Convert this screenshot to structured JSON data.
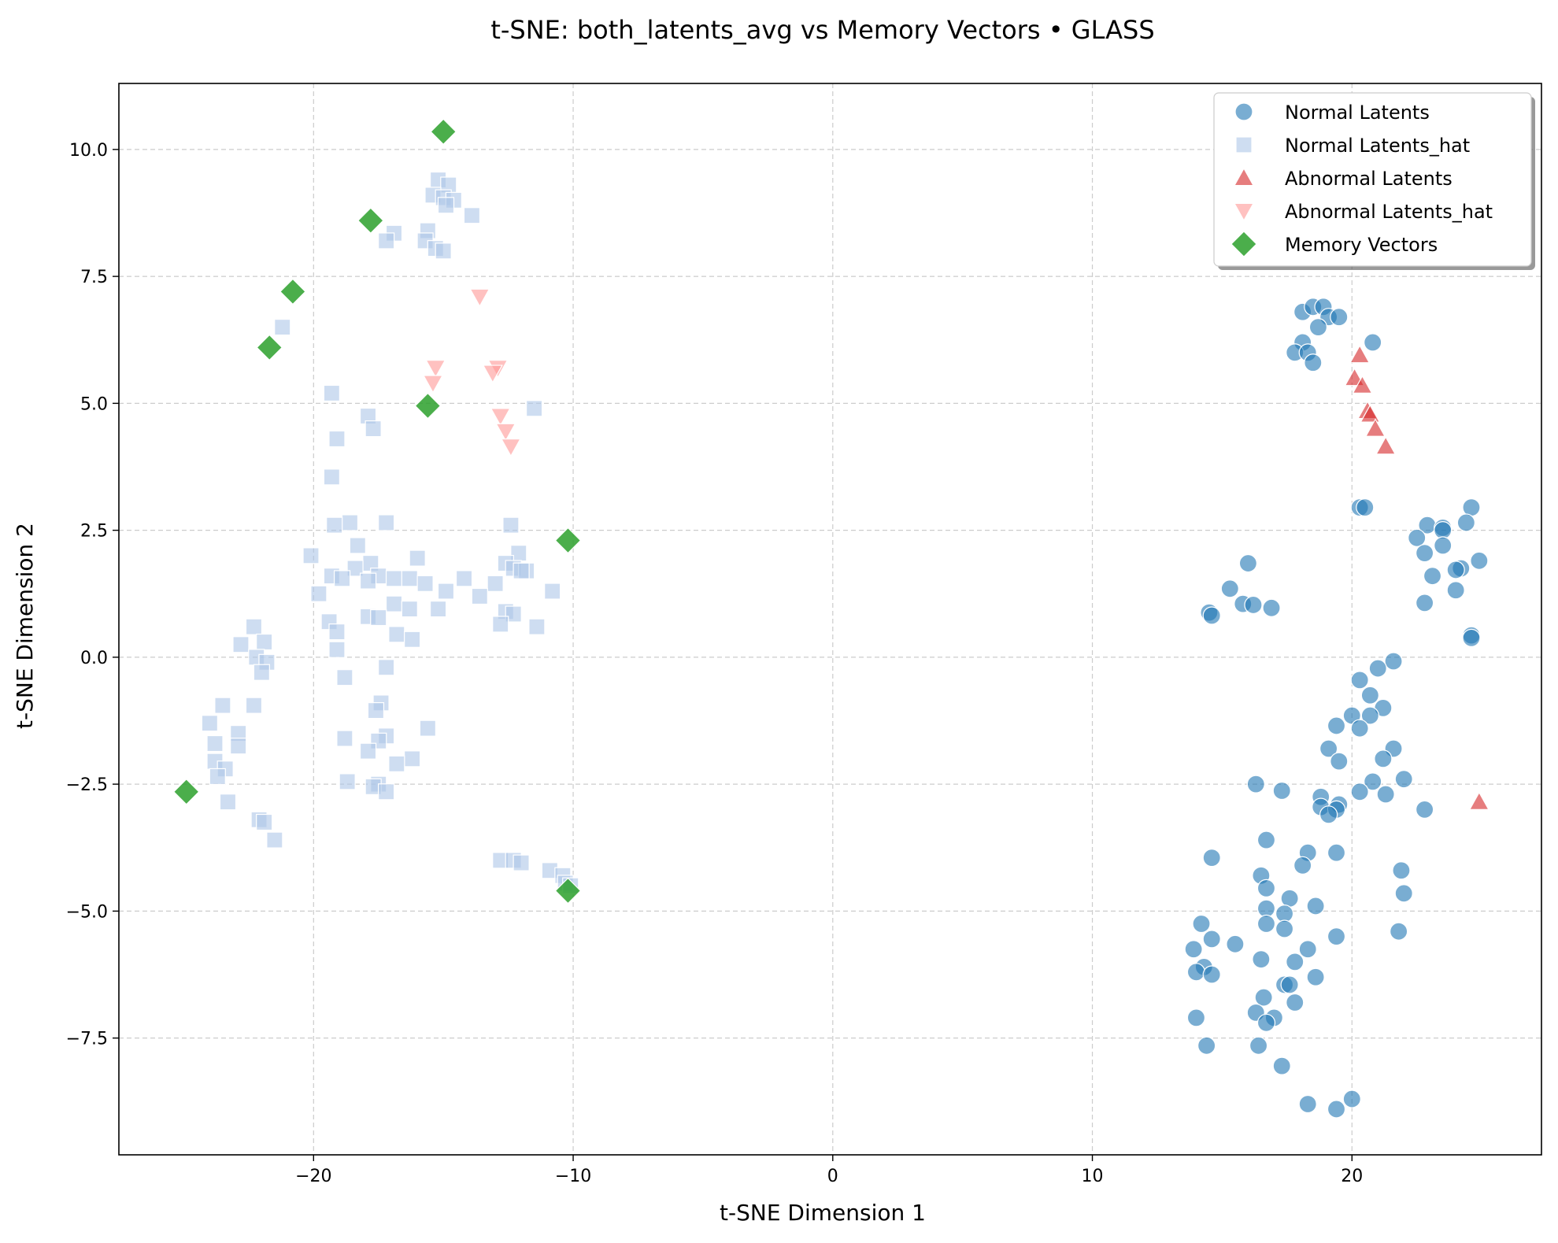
{
  "chart_data": {
    "type": "scatter",
    "title": "t-SNE: both_latents_avg vs Memory Vectors • GLASS",
    "xlabel": "t-SNE Dimension 1",
    "ylabel": "t-SNE Dimension 2",
    "xlim": [
      -27.5,
      27.3
    ],
    "ylim": [
      -9.8,
      11.3
    ],
    "xticks": [
      -20,
      -10,
      0,
      10,
      20
    ],
    "yticks": [
      -7.5,
      -5.0,
      -2.5,
      0.0,
      2.5,
      5.0,
      7.5,
      10.0
    ],
    "xtick_labels": [
      "−20",
      "−10",
      "0",
      "10",
      "20"
    ],
    "ytick_labels": [
      "−7.5",
      "−5.0",
      "−2.5",
      "0.0",
      "2.5",
      "5.0",
      "7.5",
      "10.0"
    ],
    "grid": true,
    "legend_position": "top-right",
    "series": [
      {
        "name": "Normal Latents",
        "marker": "circle",
        "color": "#1f77b4",
        "points": [
          [
            18.1,
            6.8
          ],
          [
            18.5,
            6.9
          ],
          [
            18.9,
            6.9
          ],
          [
            19.1,
            6.7
          ],
          [
            19.5,
            6.7
          ],
          [
            18.7,
            6.5
          ],
          [
            20.8,
            6.2
          ],
          [
            18.1,
            6.2
          ],
          [
            17.8,
            6.0
          ],
          [
            18.3,
            6.0
          ],
          [
            18.5,
            5.8
          ],
          [
            20.3,
            2.95
          ],
          [
            20.5,
            2.95
          ],
          [
            16.0,
            1.85
          ],
          [
            15.3,
            1.35
          ],
          [
            15.8,
            1.05
          ],
          [
            16.2,
            1.03
          ],
          [
            16.9,
            0.97
          ],
          [
            14.5,
            0.88
          ],
          [
            14.6,
            0.82
          ],
          [
            24.6,
            2.95
          ],
          [
            24.4,
            2.65
          ],
          [
            22.9,
            2.6
          ],
          [
            23.5,
            2.55
          ],
          [
            23.5,
            2.5
          ],
          [
            22.5,
            2.35
          ],
          [
            23.5,
            2.2
          ],
          [
            22.8,
            2.05
          ],
          [
            24.9,
            1.9
          ],
          [
            24.2,
            1.75
          ],
          [
            24.0,
            1.72
          ],
          [
            23.1,
            1.6
          ],
          [
            24.0,
            1.32
          ],
          [
            22.8,
            1.07
          ],
          [
            24.6,
            0.43
          ],
          [
            24.6,
            0.38
          ],
          [
            21.6,
            -0.08
          ],
          [
            21.0,
            -0.22
          ],
          [
            20.3,
            -0.45
          ],
          [
            20.7,
            -0.75
          ],
          [
            21.2,
            -1.0
          ],
          [
            20.0,
            -1.15
          ],
          [
            20.7,
            -1.15
          ],
          [
            20.3,
            -1.4
          ],
          [
            19.4,
            -1.35
          ],
          [
            21.6,
            -1.8
          ],
          [
            19.1,
            -1.8
          ],
          [
            21.2,
            -2.0
          ],
          [
            19.5,
            -2.05
          ],
          [
            22.0,
            -2.4
          ],
          [
            20.8,
            -2.45
          ],
          [
            16.3,
            -2.5
          ],
          [
            20.3,
            -2.65
          ],
          [
            21.3,
            -2.7
          ],
          [
            17.3,
            -2.63
          ],
          [
            18.8,
            -2.75
          ],
          [
            19.5,
            -2.9
          ],
          [
            18.8,
            -2.95
          ],
          [
            19.4,
            -3.0
          ],
          [
            22.8,
            -3.0
          ],
          [
            19.1,
            -3.1
          ],
          [
            16.7,
            -3.6
          ],
          [
            19.4,
            -3.85
          ],
          [
            18.3,
            -3.85
          ],
          [
            14.6,
            -3.95
          ],
          [
            18.1,
            -4.1
          ],
          [
            21.9,
            -4.2
          ],
          [
            16.5,
            -4.3
          ],
          [
            16.7,
            -4.55
          ],
          [
            22.0,
            -4.65
          ],
          [
            17.6,
            -4.75
          ],
          [
            18.6,
            -4.9
          ],
          [
            16.7,
            -4.95
          ],
          [
            17.4,
            -5.05
          ],
          [
            16.7,
            -5.25
          ],
          [
            14.2,
            -5.25
          ],
          [
            17.4,
            -5.35
          ],
          [
            21.8,
            -5.4
          ],
          [
            19.4,
            -5.5
          ],
          [
            14.6,
            -5.55
          ],
          [
            15.5,
            -5.65
          ],
          [
            13.9,
            -5.75
          ],
          [
            18.3,
            -5.75
          ],
          [
            16.5,
            -5.95
          ],
          [
            17.8,
            -6.0
          ],
          [
            14.3,
            -6.1
          ],
          [
            14.0,
            -6.2
          ],
          [
            14.6,
            -6.25
          ],
          [
            18.6,
            -6.3
          ],
          [
            17.4,
            -6.45
          ],
          [
            17.6,
            -6.45
          ],
          [
            16.6,
            -6.7
          ],
          [
            17.8,
            -6.8
          ],
          [
            16.3,
            -7.0
          ],
          [
            17.0,
            -7.1
          ],
          [
            16.7,
            -7.2
          ],
          [
            14.0,
            -7.1
          ],
          [
            14.4,
            -7.65
          ],
          [
            16.4,
            -7.65
          ],
          [
            17.3,
            -8.05
          ],
          [
            20.0,
            -8.7
          ],
          [
            18.3,
            -8.8
          ],
          [
            19.4,
            -8.9
          ]
        ]
      },
      {
        "name": "Normal Latents_hat",
        "marker": "square",
        "color": "#aec7e8",
        "points": [
          [
            -15.2,
            9.4
          ],
          [
            -14.8,
            9.3
          ],
          [
            -15.4,
            9.1
          ],
          [
            -15.0,
            9.05
          ],
          [
            -14.6,
            9.0
          ],
          [
            -14.9,
            8.9
          ],
          [
            -13.9,
            8.7
          ],
          [
            -15.6,
            8.4
          ],
          [
            -16.9,
            8.35
          ],
          [
            -17.2,
            8.2
          ],
          [
            -15.7,
            8.2
          ],
          [
            -15.3,
            8.05
          ],
          [
            -15.0,
            8.0
          ],
          [
            -21.2,
            6.5
          ],
          [
            -19.3,
            5.2
          ],
          [
            -17.9,
            4.75
          ],
          [
            -11.5,
            4.9
          ],
          [
            -17.7,
            4.5
          ],
          [
            -19.1,
            4.3
          ],
          [
            -19.3,
            3.55
          ],
          [
            -17.2,
            2.65
          ],
          [
            -18.6,
            2.65
          ],
          [
            -19.2,
            2.6
          ],
          [
            -12.4,
            2.6
          ],
          [
            -18.3,
            2.2
          ],
          [
            -12.1,
            2.05
          ],
          [
            -20.1,
            2.0
          ],
          [
            -16.0,
            1.95
          ],
          [
            -17.8,
            1.85
          ],
          [
            -12.6,
            1.85
          ],
          [
            -12.3,
            1.75
          ],
          [
            -18.4,
            1.75
          ],
          [
            -11.8,
            1.7
          ],
          [
            -12.0,
            1.7
          ],
          [
            -17.5,
            1.6
          ],
          [
            -19.3,
            1.6
          ],
          [
            -16.9,
            1.55
          ],
          [
            -16.3,
            1.55
          ],
          [
            -18.9,
            1.55
          ],
          [
            -14.2,
            1.55
          ],
          [
            -17.9,
            1.5
          ],
          [
            -15.7,
            1.45
          ],
          [
            -13.0,
            1.45
          ],
          [
            -10.8,
            1.3
          ],
          [
            -14.9,
            1.3
          ],
          [
            -19.8,
            1.25
          ],
          [
            -13.6,
            1.2
          ],
          [
            -16.9,
            1.05
          ],
          [
            -16.3,
            0.95
          ],
          [
            -15.2,
            0.95
          ],
          [
            -12.6,
            0.9
          ],
          [
            -12.3,
            0.85
          ],
          [
            -17.9,
            0.8
          ],
          [
            -17.5,
            0.78
          ],
          [
            -19.4,
            0.7
          ],
          [
            -12.8,
            0.65
          ],
          [
            -11.4,
            0.6
          ],
          [
            -19.1,
            0.5
          ],
          [
            -16.8,
            0.45
          ],
          [
            -16.2,
            0.35
          ],
          [
            -19.1,
            0.15
          ],
          [
            -22.3,
            0.6
          ],
          [
            -21.9,
            0.3
          ],
          [
            -22.8,
            0.25
          ],
          [
            -22.2,
            0.0
          ],
          [
            -21.8,
            -0.1
          ],
          [
            -17.2,
            -0.2
          ],
          [
            -22.0,
            -0.3
          ],
          [
            -18.8,
            -0.4
          ],
          [
            -17.4,
            -0.9
          ],
          [
            -22.3,
            -0.95
          ],
          [
            -23.5,
            -0.95
          ],
          [
            -17.6,
            -1.05
          ],
          [
            -24.0,
            -1.3
          ],
          [
            -15.6,
            -1.4
          ],
          [
            -22.9,
            -1.5
          ],
          [
            -17.2,
            -1.55
          ],
          [
            -18.8,
            -1.6
          ],
          [
            -17.5,
            -1.65
          ],
          [
            -23.8,
            -1.7
          ],
          [
            -22.9,
            -1.75
          ],
          [
            -17.9,
            -1.85
          ],
          [
            -16.2,
            -2.0
          ],
          [
            -23.8,
            -2.05
          ],
          [
            -16.8,
            -2.1
          ],
          [
            -23.4,
            -2.2
          ],
          [
            -23.7,
            -2.35
          ],
          [
            -18.7,
            -2.45
          ],
          [
            -17.5,
            -2.5
          ],
          [
            -17.7,
            -2.55
          ],
          [
            -17.2,
            -2.65
          ],
          [
            -23.3,
            -2.85
          ],
          [
            -22.1,
            -3.2
          ],
          [
            -21.9,
            -3.25
          ],
          [
            -21.5,
            -3.6
          ],
          [
            -12.8,
            -4.0
          ],
          [
            -12.3,
            -4.0
          ],
          [
            -12.0,
            -4.05
          ],
          [
            -10.9,
            -4.2
          ],
          [
            -10.4,
            -4.3
          ],
          [
            -10.3,
            -4.45
          ],
          [
            -10.1,
            -4.5
          ]
        ]
      },
      {
        "name": "Abnormal Latents",
        "marker": "triangle-up",
        "color": "#d62728",
        "points": [
          [
            20.3,
            5.95
          ],
          [
            20.1,
            5.5
          ],
          [
            20.4,
            5.35
          ],
          [
            20.6,
            4.85
          ],
          [
            20.7,
            4.78
          ],
          [
            20.9,
            4.5
          ],
          [
            21.3,
            4.15
          ],
          [
            24.9,
            -2.85
          ]
        ]
      },
      {
        "name": "Abnormal Latents_hat",
        "marker": "triangle-down",
        "color": "#ff9896",
        "points": [
          [
            -13.6,
            7.1
          ],
          [
            -15.3,
            5.7
          ],
          [
            -12.9,
            5.7
          ],
          [
            -15.4,
            5.4
          ],
          [
            -13.1,
            5.6
          ],
          [
            -12.8,
            4.75
          ],
          [
            -12.6,
            4.45
          ],
          [
            -12.4,
            4.15
          ]
        ]
      },
      {
        "name": "Memory Vectors",
        "marker": "diamond",
        "color": "#2ca02c",
        "points": [
          [
            -15.0,
            10.35
          ],
          [
            -17.8,
            8.6
          ],
          [
            -20.8,
            7.2
          ],
          [
            -21.7,
            6.1
          ],
          [
            -15.6,
            4.95
          ],
          [
            -10.2,
            2.3
          ],
          [
            -24.9,
            -2.65
          ],
          [
            -10.2,
            -4.6
          ]
        ]
      }
    ]
  }
}
